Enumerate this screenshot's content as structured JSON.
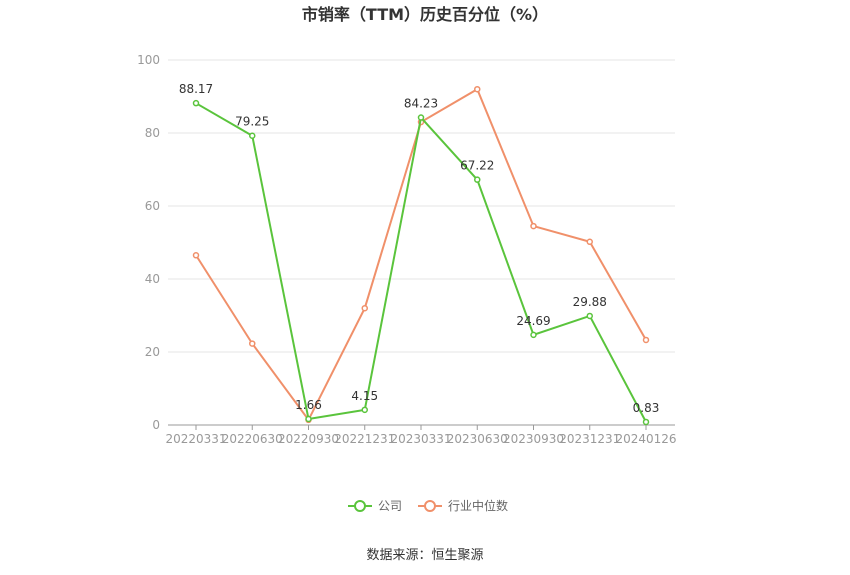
{
  "chart_data": {
    "type": "line",
    "title": "市销率（TTM）历史百分位（%）",
    "categories": [
      "20220331",
      "20220630",
      "20220930",
      "20221231",
      "20230331",
      "20230630",
      "20230930",
      "20231231",
      "20240126"
    ],
    "ylim": [
      0,
      100
    ],
    "yticks": [
      "0",
      "20",
      "40",
      "60",
      "80",
      "100"
    ],
    "grid": true,
    "legend_position": "bottom-center",
    "series": [
      {
        "name": "公司",
        "color": "#5ac43c",
        "values": [
          88.17,
          79.25,
          1.66,
          4.15,
          84.23,
          67.22,
          24.69,
          29.88,
          0.83
        ],
        "labels": [
          "88.17",
          "79.25",
          "1.66",
          "4.15",
          "84.23",
          "67.22",
          "24.69",
          "29.88",
          "0.83"
        ]
      },
      {
        "name": "行业中位数",
        "color": "#f0906a",
        "values": [
          46.5,
          22.3,
          1.4,
          32.0,
          83.0,
          92.0,
          54.5,
          50.2,
          23.3
        ]
      }
    ],
    "source": "数据来源：恒生聚源"
  }
}
